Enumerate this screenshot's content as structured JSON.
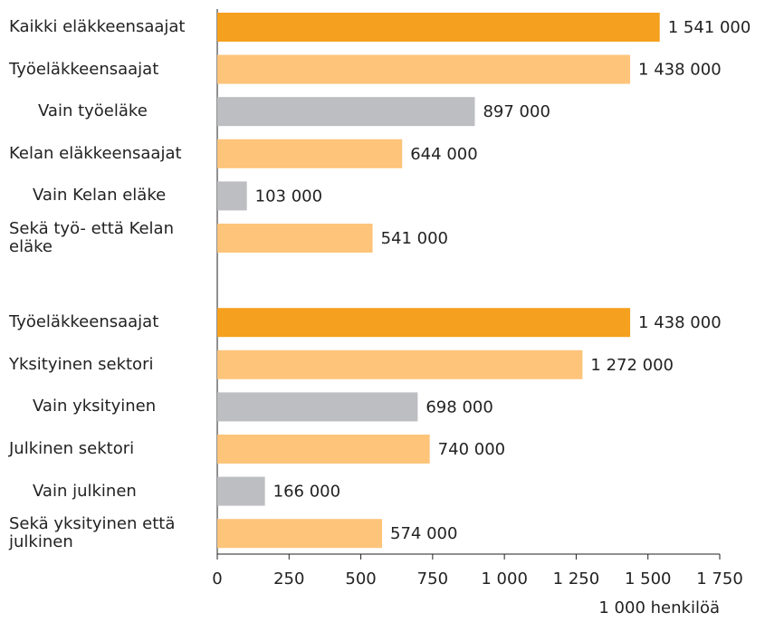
{
  "chart_data": {
    "type": "bar",
    "orientation": "horizontal",
    "categories": [
      "Kaikki eläkkeensaajat",
      "Työeläkkeensaajat",
      "Vain työeläke",
      "Kelan eläkkeensaajat",
      "Vain Kelan eläke",
      "Sekä työ- että Kelan eläke",
      null,
      "Työeläkkeensaajat",
      "Yksityinen sektori",
      "Vain yksityinen",
      "Julkinen sektori",
      "Vain julkinen",
      "Sekä yksityinen että julkinen"
    ],
    "values": [
      1541,
      1438,
      897,
      644,
      103,
      541,
      null,
      1438,
      1272,
      698,
      740,
      166,
      574
    ],
    "value_labels": [
      "1 541 000",
      "1 438 000",
      "897 000",
      "644 000",
      "103 000",
      "541 000",
      null,
      "1 438 000",
      "1 272 000",
      "698 000",
      "740 000",
      "166 000",
      "574 000"
    ],
    "colors": [
      "#f5a01f",
      "#fdc47a",
      "#bdbec1",
      "#fdc47a",
      "#bdbec1",
      "#fdc47a",
      null,
      "#f5a01f",
      "#fdc47a",
      "#bdbec1",
      "#fdc47a",
      "#bdbec1",
      "#fdc47a"
    ],
    "xlim": [
      0,
      1750
    ],
    "xticks": [
      0,
      250,
      500,
      750,
      {
        "value": 1000,
        "label": "1 000"
      },
      {
        "value": 1250,
        "label": "1 250"
      },
      {
        "value": 1500,
        "label": "1 500"
      },
      {
        "value": 1750,
        "label": "1 750"
      }
    ],
    "x_label": "1 000 henkilöä"
  }
}
